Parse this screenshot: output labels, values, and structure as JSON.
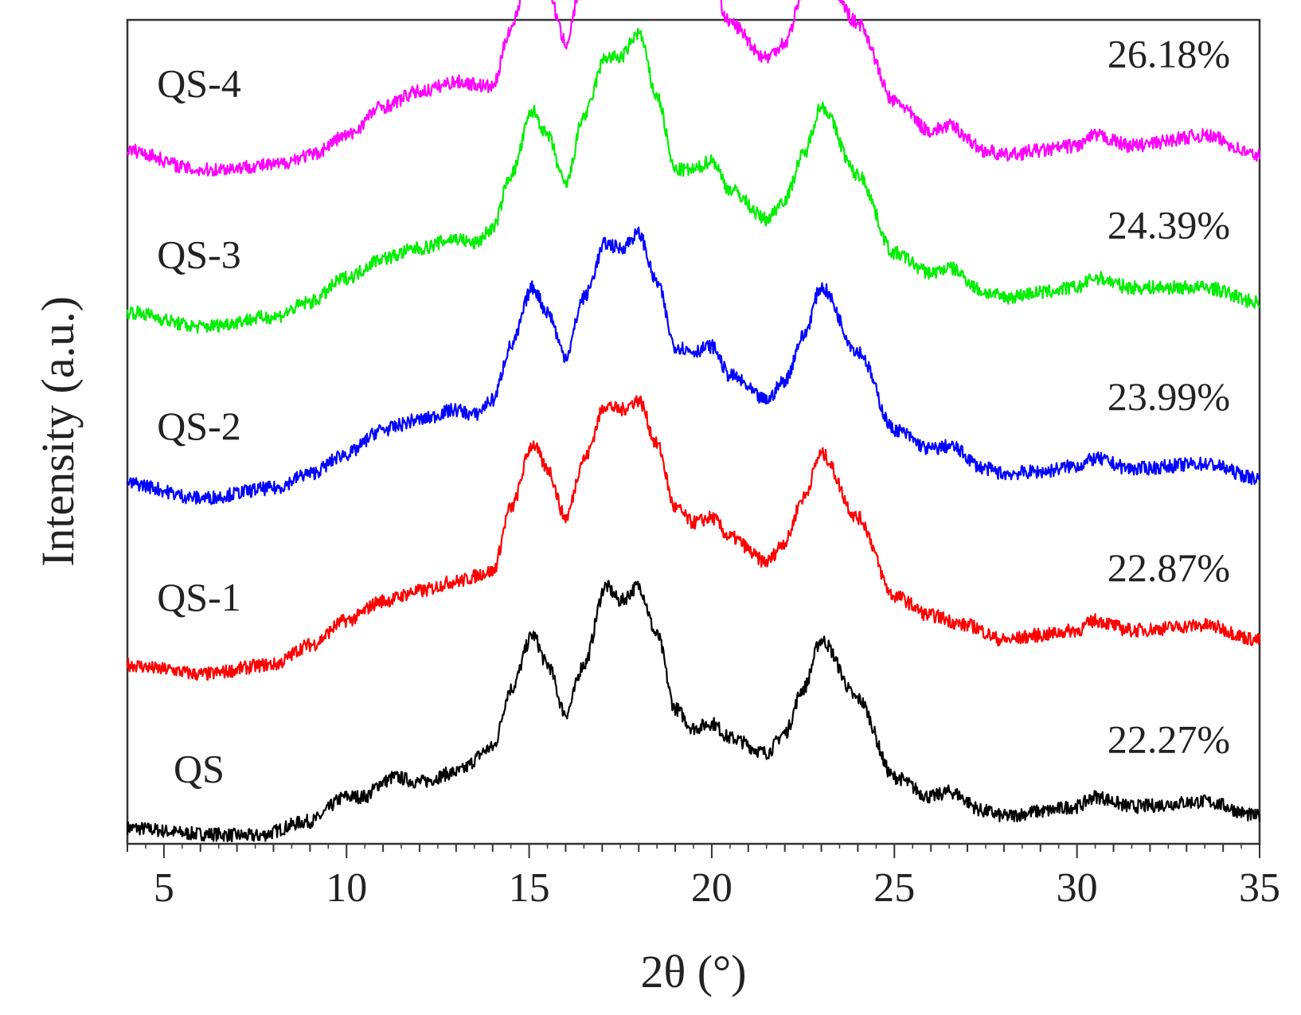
{
  "chart_data": {
    "type": "line",
    "title": "",
    "xlabel": "2θ (°)",
    "ylabel": "Intensity (a.u.)",
    "xlim": [
      4,
      35
    ],
    "xticks": [
      5,
      10,
      15,
      20,
      25,
      30,
      35
    ],
    "xtick_labels": [
      "5",
      "10",
      "15",
      "20",
      "25",
      "30",
      "35"
    ],
    "y_ticks_shown": false,
    "grid": false,
    "legend": "none",
    "series": [
      {
        "name": "QS",
        "color": "#000000",
        "crystallinity": "22.27%",
        "baseline": 0,
        "points": [
          [
            4,
            8
          ],
          [
            6,
            2
          ],
          [
            7.5,
            0
          ],
          [
            9,
            15
          ],
          [
            10,
            40
          ],
          [
            10.5,
            40
          ],
          [
            11,
            55
          ],
          [
            11.3,
            60
          ],
          [
            12,
            55
          ],
          [
            13,
            65
          ],
          [
            14,
            90
          ],
          [
            14.5,
            150
          ],
          [
            15.1,
            205
          ],
          [
            15.5,
            175
          ],
          [
            16,
            125
          ],
          [
            16.5,
            175
          ],
          [
            17.1,
            255
          ],
          [
            17.5,
            240
          ],
          [
            18,
            255
          ],
          [
            18.5,
            205
          ],
          [
            19,
            130
          ],
          [
            19.5,
            110
          ],
          [
            20,
            115
          ],
          [
            20.5,
            100
          ],
          [
            21.5,
            85
          ],
          [
            22,
            105
          ],
          [
            22.5,
            150
          ],
          [
            23,
            200
          ],
          [
            24,
            140
          ],
          [
            25,
            60
          ],
          [
            26,
            40
          ],
          [
            26.5,
            45
          ],
          [
            27.5,
            25
          ],
          [
            28,
            20
          ],
          [
            29,
            25
          ],
          [
            30,
            30
          ],
          [
            30.5,
            40
          ],
          [
            31.5,
            30
          ],
          [
            33.5,
            35
          ],
          [
            35,
            20
          ]
        ]
      },
      {
        "name": "QS-1",
        "color": "#ff0000",
        "crystallinity": "22.87%",
        "baseline": 175,
        "points": [
          [
            4,
            0
          ],
          [
            5,
            -5
          ],
          [
            6,
            -10
          ],
          [
            8,
            0
          ],
          [
            9,
            20
          ],
          [
            10,
            45
          ],
          [
            11,
            65
          ],
          [
            12,
            75
          ],
          [
            13,
            85
          ],
          [
            14,
            95
          ],
          [
            14.5,
            160
          ],
          [
            15.1,
            225
          ],
          [
            15.5,
            200
          ],
          [
            16,
            150
          ],
          [
            16.5,
            210
          ],
          [
            17.1,
            265
          ],
          [
            17.5,
            260
          ],
          [
            18,
            270
          ],
          [
            18.5,
            225
          ],
          [
            19,
            160
          ],
          [
            19.5,
            145
          ],
          [
            20,
            150
          ],
          [
            20.5,
            130
          ],
          [
            21.5,
            105
          ],
          [
            22,
            125
          ],
          [
            22.5,
            170
          ],
          [
            23,
            215
          ],
          [
            24,
            150
          ],
          [
            25,
            70
          ],
          [
            26,
            50
          ],
          [
            27,
            40
          ],
          [
            28,
            25
          ],
          [
            29,
            30
          ],
          [
            30,
            35
          ],
          [
            30.5,
            45
          ],
          [
            31.5,
            35
          ],
          [
            33.5,
            40
          ],
          [
            35,
            25
          ]
        ]
      },
      {
        "name": "QS-2",
        "color": "#0000ff",
        "crystallinity": "23.99%",
        "baseline": 350,
        "points": [
          [
            4,
            10
          ],
          [
            6,
            -5
          ],
          [
            8,
            5
          ],
          [
            9,
            20
          ],
          [
            10,
            40
          ],
          [
            11,
            65
          ],
          [
            12,
            75
          ],
          [
            13,
            85
          ],
          [
            13.5,
            80
          ],
          [
            14,
            95
          ],
          [
            14.5,
            150
          ],
          [
            15.1,
            210
          ],
          [
            15.5,
            185
          ],
          [
            16,
            140
          ],
          [
            16.5,
            200
          ],
          [
            17.1,
            255
          ],
          [
            17.5,
            250
          ],
          [
            18,
            265
          ],
          [
            18.5,
            215
          ],
          [
            19,
            150
          ],
          [
            19.5,
            145
          ],
          [
            20,
            150
          ],
          [
            20.5,
            120
          ],
          [
            21.5,
            95
          ],
          [
            22,
            115
          ],
          [
            22.5,
            160
          ],
          [
            23,
            210
          ],
          [
            24,
            145
          ],
          [
            25,
            65
          ],
          [
            26,
            45
          ],
          [
            26.5,
            48
          ],
          [
            27.5,
            25
          ],
          [
            28,
            20
          ],
          [
            29,
            22
          ],
          [
            30,
            28
          ],
          [
            30.5,
            35
          ],
          [
            31.5,
            25
          ],
          [
            33.5,
            30
          ],
          [
            35,
            15
          ]
        ]
      },
      {
        "name": "QS-3",
        "color": "#00ee00",
        "crystallinity": "24.39%",
        "baseline": 525,
        "points": [
          [
            4,
            10
          ],
          [
            6,
            -5
          ],
          [
            8,
            5
          ],
          [
            9,
            20
          ],
          [
            10,
            45
          ],
          [
            11,
            65
          ],
          [
            12,
            75
          ],
          [
            13,
            85
          ],
          [
            13.5,
            80
          ],
          [
            14,
            95
          ],
          [
            14.5,
            150
          ],
          [
            15.1,
            215
          ],
          [
            15.5,
            190
          ],
          [
            16,
            140
          ],
          [
            16.5,
            210
          ],
          [
            17.1,
            270
          ],
          [
            17.5,
            270
          ],
          [
            18,
            295
          ],
          [
            18.5,
            230
          ],
          [
            19,
            155
          ],
          [
            19.5,
            155
          ],
          [
            20,
            165
          ],
          [
            20.5,
            135
          ],
          [
            21.5,
            105
          ],
          [
            22,
            125
          ],
          [
            22.5,
            170
          ],
          [
            23,
            220
          ],
          [
            24,
            150
          ],
          [
            25,
            70
          ],
          [
            26,
            50
          ],
          [
            26.5,
            55
          ],
          [
            27.5,
            30
          ],
          [
            28,
            25
          ],
          [
            29,
            30
          ],
          [
            30,
            35
          ],
          [
            30.5,
            45
          ],
          [
            31.5,
            35
          ],
          [
            33.5,
            35
          ],
          [
            35,
            20
          ]
        ]
      },
      {
        "name": "QS-4",
        "color": "#ff00ff",
        "crystallinity": "26.18%",
        "baseline": 700,
        "points": [
          [
            4,
            0
          ],
          [
            6,
            -20
          ],
          [
            8,
            -15
          ],
          [
            9,
            -5
          ],
          [
            10,
            15
          ],
          [
            11,
            45
          ],
          [
            12,
            60
          ],
          [
            13,
            70
          ],
          [
            14,
            65
          ],
          [
            14.5,
            125
          ],
          [
            15,
            185
          ],
          [
            15.5,
            165
          ],
          [
            16,
            110
          ],
          [
            16.5,
            180
          ],
          [
            17,
            245
          ],
          [
            17.5,
            255
          ],
          [
            17.9,
            285
          ],
          [
            18.5,
            220
          ],
          [
            19,
            160
          ],
          [
            19.5,
            175
          ],
          [
            20,
            170
          ],
          [
            20.5,
            130
          ],
          [
            21.5,
            95
          ],
          [
            22,
            110
          ],
          [
            22.5,
            160
          ],
          [
            22.9,
            195
          ],
          [
            24,
            130
          ],
          [
            25,
            50
          ],
          [
            26,
            20
          ],
          [
            26.5,
            25
          ],
          [
            27.5,
            0
          ],
          [
            28,
            -5
          ],
          [
            29,
            0
          ],
          [
            30,
            5
          ],
          [
            30.5,
            15
          ],
          [
            31.5,
            5
          ],
          [
            33.5,
            15
          ],
          [
            35,
            -5
          ]
        ]
      }
    ]
  }
}
